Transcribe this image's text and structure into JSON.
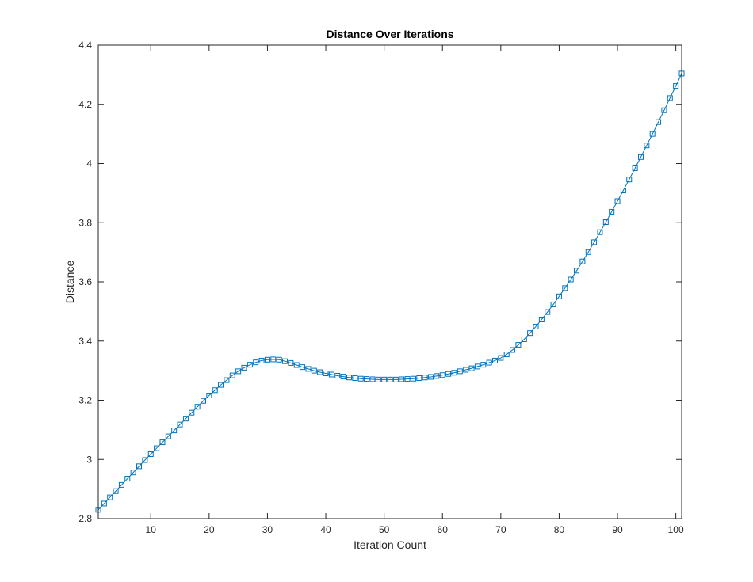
{
  "chart_data": {
    "type": "line",
    "title": "Distance Over Iterations",
    "xlabel": "Iteration Count",
    "ylabel": "Distance",
    "xlim": [
      1,
      101
    ],
    "ylim": [
      2.8,
      4.4
    ],
    "xticks": [
      10,
      20,
      30,
      40,
      50,
      60,
      70,
      80,
      90,
      100
    ],
    "yticks": [
      2.8,
      3,
      3.2,
      3.4,
      3.6,
      3.8,
      4,
      4.2,
      4.4
    ],
    "ytick_labels": [
      "2.8",
      "3",
      "3.2",
      "3.4",
      "3.6",
      "3.8",
      "4",
      "4.2",
      "4.4"
    ],
    "grid": false,
    "box": true,
    "series": [
      {
        "color": "#0072BD",
        "marker": "square",
        "x": [
          1,
          2,
          3,
          4,
          5,
          6,
          7,
          8,
          9,
          10,
          11,
          12,
          13,
          14,
          15,
          16,
          17,
          18,
          19,
          20,
          21,
          22,
          23,
          24,
          25,
          26,
          27,
          28,
          29,
          30,
          31,
          32,
          33,
          34,
          35,
          36,
          37,
          38,
          39,
          40,
          41,
          42,
          43,
          44,
          45,
          46,
          47,
          48,
          49,
          50,
          51,
          52,
          53,
          54,
          55,
          56,
          57,
          58,
          59,
          60,
          61,
          62,
          63,
          64,
          65,
          66,
          67,
          68,
          69,
          70,
          71,
          72,
          73,
          74,
          75,
          76,
          77,
          78,
          79,
          80,
          81,
          82,
          83,
          84,
          85,
          86,
          87,
          88,
          89,
          90,
          91,
          92,
          93,
          94,
          95,
          96,
          97,
          98,
          99,
          100,
          101
        ],
        "values": [
          2.83,
          2.851,
          2.872,
          2.893,
          2.914,
          2.935,
          2.956,
          2.977,
          2.998,
          3.018,
          3.038,
          3.058,
          3.078,
          3.098,
          3.118,
          3.138,
          3.158,
          3.178,
          3.198,
          3.216,
          3.234,
          3.252,
          3.268,
          3.284,
          3.298,
          3.31,
          3.32,
          3.328,
          3.334,
          3.337,
          3.338,
          3.337,
          3.332,
          3.326,
          3.319,
          3.312,
          3.306,
          3.3,
          3.295,
          3.291,
          3.287,
          3.283,
          3.28,
          3.277,
          3.275,
          3.273,
          3.272,
          3.271,
          3.27,
          3.27,
          3.27,
          3.27,
          3.271,
          3.272,
          3.273,
          3.275,
          3.277,
          3.279,
          3.282,
          3.285,
          3.289,
          3.293,
          3.298,
          3.303,
          3.308,
          3.314,
          3.32,
          3.327,
          3.334,
          3.343,
          3.355,
          3.37,
          3.387,
          3.406,
          3.427,
          3.449,
          3.473,
          3.498,
          3.524,
          3.551,
          3.579,
          3.608,
          3.638,
          3.669,
          3.701,
          3.734,
          3.768,
          3.802,
          3.837,
          3.873,
          3.909,
          3.946,
          3.984,
          4.022,
          4.061,
          4.1,
          4.14,
          4.18,
          4.221,
          4.262,
          4.304
        ]
      }
    ]
  }
}
